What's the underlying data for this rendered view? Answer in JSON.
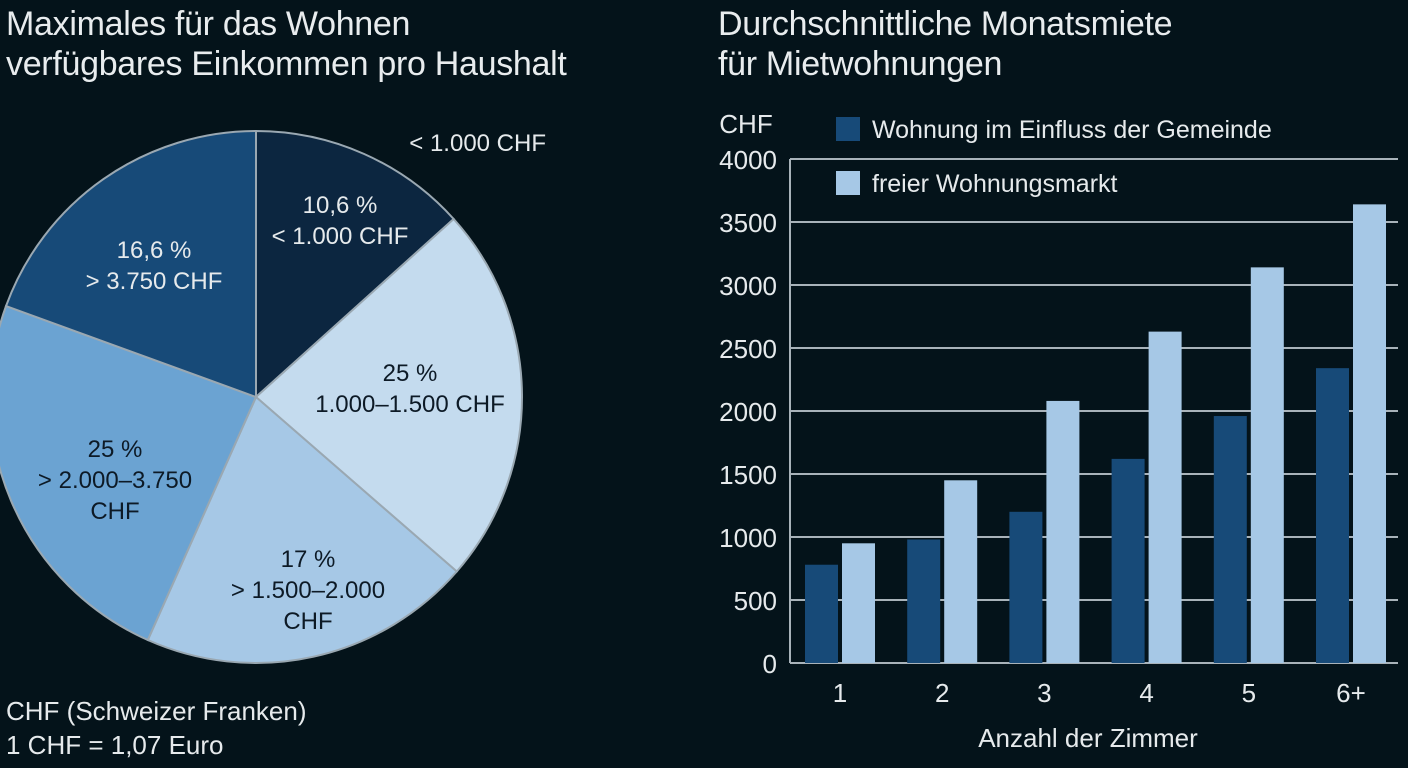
{
  "pie": {
    "title": "Maximales für das Wohnen\nverfügbares Einkommen pro Haushalt",
    "outside_label": "< 1.000 CHF",
    "slices": [
      {
        "pct": "10,6 %",
        "range": "< 1.000 CHF",
        "color": "#0c2640",
        "text": "#e6eaec",
        "start": 0,
        "end": 48
      },
      {
        "pct": "25 %",
        "range": "1.000–1.500 CHF",
        "color": "#c4dbee",
        "text": "#0d1a26",
        "start": 48,
        "end": 131
      },
      {
        "pct": "17 %",
        "range": "> 1.500–2.000",
        "range2": "CHF",
        "color": "#a6c8e6",
        "text": "#0d1a26",
        "start": 131,
        "end": 204
      },
      {
        "pct": "25 %",
        "range": "> 2.000–3.750",
        "range2": "CHF",
        "color": "#6ba3d2",
        "text": "#0d1a26",
        "start": 204,
        "end": 290
      },
      {
        "pct": "16,6 %",
        "range": "> 3.750 CHF",
        "color": "#174a78",
        "text": "#e6eaec",
        "start": 290,
        "end": 360
      }
    ],
    "note_line1": "CHF (Schweizer Franken)",
    "note_line2": "1 CHF = 1,07 Euro"
  },
  "bar": {
    "title": "Durchschnittliche Monatsmiete\nfür Mietwohnungen",
    "unit_label": "CHF",
    "xlabel": "Anzahl der Zimmer"
  },
  "chart_data": [
    {
      "type": "pie",
      "title": "Maximales für das Wohnen verfügbares Einkommen pro Haushalt",
      "labels": [
        "< 1.000 CHF",
        "1.000–1.500 CHF",
        "> 1.500–2.000 CHF",
        "> 2.000–3.750 CHF",
        "> 3.750 CHF"
      ],
      "values": [
        10.6,
        25,
        17,
        25,
        16.6
      ],
      "annotations": [
        "< 1.000 CHF",
        "CHF (Schweizer Franken)",
        "1 CHF = 1,07 Euro"
      ]
    },
    {
      "type": "bar",
      "title": "Durchschnittliche Monatsmiete für Mietwohnungen",
      "categories": [
        "1",
        "2",
        "3",
        "4",
        "5",
        "6+"
      ],
      "series": [
        {
          "name": "Wohnung im Einfluss der Gemeinde",
          "color": "#174a78",
          "values": [
            780,
            980,
            1200,
            1620,
            1960,
            2340
          ]
        },
        {
          "name": "freier Wohnungsmarkt",
          "color": "#a6c8e6",
          "values": [
            950,
            1450,
            2080,
            2630,
            3140,
            3640
          ]
        }
      ],
      "xlabel": "Anzahl der Zimmer",
      "ylabel": "CHF",
      "ylim": [
        0,
        4000
      ],
      "yticks": [
        0,
        500,
        1000,
        1500,
        2000,
        2500,
        3000,
        3500,
        4000
      ],
      "grid": true,
      "legend_position": "top-left inside"
    }
  ]
}
